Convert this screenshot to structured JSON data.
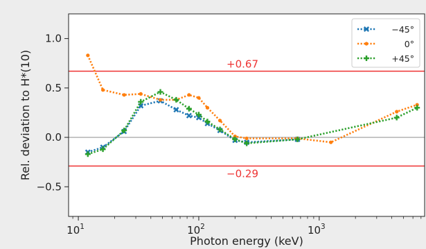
{
  "chart_data": {
    "type": "line",
    "xlabel": "Photon energy (keV)",
    "ylabel": "Rel. deviation to H*(10)",
    "xscale": "log",
    "xlim": [
      8.3,
      7500
    ],
    "ylim": [
      -0.8,
      1.25
    ],
    "x_tick_values": [
      10,
      100,
      1000
    ],
    "x_tick_base": "10",
    "x_tick_exponents": [
      "1",
      "2",
      "3"
    ],
    "y_tick_values": [
      1.0,
      0.5,
      0.0,
      -0.5
    ],
    "y_tick_labels": [
      "1.0",
      "0.5",
      "0.0",
      "−0.5"
    ],
    "reference_lines": [
      {
        "y": 0.0,
        "label": "",
        "color": "#9a9a9a"
      },
      {
        "y": 0.67,
        "label": "+0.67",
        "color": "#ee3333"
      },
      {
        "y": -0.29,
        "label": "−0.29",
        "color": "#ee3333"
      }
    ],
    "legend_position": "top-right",
    "series": [
      {
        "name": "−45°",
        "color": "#1f77b4",
        "marker": "x",
        "x": [
          12,
          16,
          24,
          33,
          48,
          65,
          83,
          100,
          118,
          150,
          200,
          250,
          660
        ],
        "y": [
          -0.15,
          -0.1,
          0.06,
          0.32,
          0.37,
          0.28,
          0.22,
          0.2,
          0.14,
          0.07,
          -0.03,
          -0.05,
          -0.02
        ]
      },
      {
        "name": "0°",
        "color": "#ff7f0e",
        "marker": "o",
        "x": [
          12,
          16,
          24,
          33,
          48,
          65,
          83,
          100,
          118,
          150,
          200,
          250,
          660,
          1250,
          4400,
          6500
        ],
        "y": [
          0.83,
          0.48,
          0.43,
          0.44,
          0.38,
          0.38,
          0.43,
          0.4,
          0.3,
          0.17,
          0.01,
          -0.01,
          -0.01,
          -0.05,
          0.26,
          0.33
        ]
      },
      {
        "name": "+45°",
        "color": "#2ca02c",
        "marker": "+",
        "x": [
          12,
          16,
          24,
          33,
          48,
          65,
          83,
          100,
          118,
          150,
          200,
          250,
          660,
          4400,
          6500
        ],
        "y": [
          -0.17,
          -0.12,
          0.07,
          0.36,
          0.46,
          0.38,
          0.29,
          0.23,
          0.16,
          0.08,
          -0.02,
          -0.06,
          -0.02,
          0.2,
          0.3
        ]
      }
    ]
  }
}
